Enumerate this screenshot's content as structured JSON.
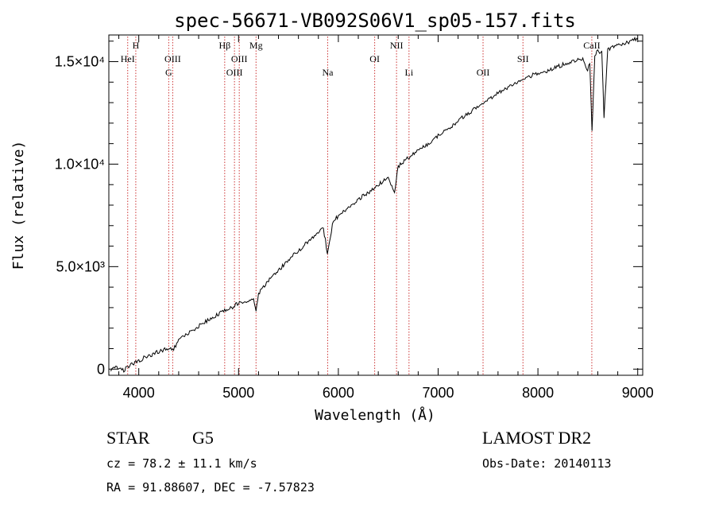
{
  "chart_data": {
    "type": "line",
    "title": "spec-56671-VB092S06V1_sp05-157.fits",
    "xlabel": "Wavelength (Å)",
    "ylabel": "Flux (relative)",
    "xlim": [
      3700,
      9050
    ],
    "ylim": [
      -300,
      16300
    ],
    "x_ticks": [
      4000,
      5000,
      6000,
      7000,
      8000,
      9000
    ],
    "x_tick_labels": [
      "4000",
      "5000",
      "6000",
      "7000",
      "8000",
      "9000"
    ],
    "y_ticks": [
      0,
      5000,
      10000,
      15000
    ],
    "y_tick_labels": [
      "0",
      "5.0×10³",
      "1.0×10⁴",
      "1.5×10⁴"
    ],
    "grid": false,
    "series": [
      {
        "color": "#000000",
        "x": [
          3720,
          3760,
          3800,
          3850,
          3900,
          3950,
          4000,
          4050,
          4100,
          4150,
          4200,
          4250,
          4300,
          4340,
          4400,
          4450,
          4500,
          4550,
          4600,
          4650,
          4700,
          4750,
          4800,
          4861,
          4900,
          4950,
          5000,
          5050,
          5100,
          5150,
          5175,
          5200,
          5250,
          5300,
          5350,
          5400,
          5450,
          5500,
          5550,
          5600,
          5650,
          5700,
          5750,
          5800,
          5850,
          5890,
          5950,
          6000,
          6050,
          6100,
          6150,
          6200,
          6250,
          6300,
          6350,
          6400,
          6450,
          6500,
          6563,
          6600,
          6650,
          6700,
          6750,
          6800,
          6850,
          6900,
          6950,
          7000,
          7050,
          7100,
          7150,
          7200,
          7250,
          7300,
          7350,
          7400,
          7450,
          7500,
          7550,
          7600,
          7650,
          7700,
          7750,
          7800,
          7850,
          7900,
          7950,
          8000,
          8050,
          8100,
          8150,
          8200,
          8250,
          8300,
          8350,
          8400,
          8450,
          8498,
          8520,
          8542,
          8570,
          8600,
          8640,
          8662,
          8700,
          8750,
          8800,
          8850,
          8900,
          8950,
          9000
        ],
        "y": [
          -100,
          50,
          100,
          -50,
          150,
          250,
          400,
          550,
          650,
          750,
          850,
          950,
          1000,
          900,
          1400,
          1600,
          1750,
          1900,
          2100,
          2250,
          2400,
          2550,
          2700,
          2850,
          2950,
          3050,
          3250,
          3300,
          3350,
          3450,
          2800,
          3700,
          4000,
          4350,
          4600,
          4850,
          5050,
          5300,
          5550,
          5750,
          6000,
          6250,
          6450,
          6650,
          6850,
          5700,
          7250,
          7450,
          7650,
          7850,
          8050,
          8250,
          8450,
          8600,
          8800,
          9000,
          9150,
          9350,
          8600,
          9900,
          10100,
          10300,
          10500,
          10700,
          10850,
          11000,
          11200,
          11400,
          11600,
          11750,
          11900,
          12100,
          12300,
          12450,
          12650,
          12800,
          12950,
          13100,
          13300,
          13450,
          13600,
          13750,
          13900,
          14050,
          14150,
          14250,
          14350,
          14400,
          14450,
          14550,
          14650,
          14750,
          14850,
          14950,
          15050,
          15100,
          15150,
          14500,
          15000,
          11600,
          15300,
          15500,
          15450,
          12300,
          15550,
          15700,
          15800,
          15900,
          15950,
          16050,
          16100
        ]
      }
    ],
    "line_marks": [
      {
        "wavelength": 3889,
        "label": "HeI",
        "row": 2
      },
      {
        "wavelength": 3970,
        "label": "H",
        "row": 1
      },
      {
        "wavelength": 4300,
        "label": "G",
        "row": 3
      },
      {
        "wavelength": 4340,
        "label": "OIII",
        "row": 2
      },
      {
        "wavelength": 4861,
        "label": "Hβ",
        "row": 1
      },
      {
        "wavelength": 4959,
        "label": "OIII",
        "row": 3
      },
      {
        "wavelength": 5007,
        "label": "OIII",
        "row": 2
      },
      {
        "wavelength": 5175,
        "label": "Mg",
        "row": 1
      },
      {
        "wavelength": 5893,
        "label": "Na",
        "row": 3
      },
      {
        "wavelength": 6364,
        "label": "OI",
        "row": 2
      },
      {
        "wavelength": 6583,
        "label": "NII",
        "row": 1
      },
      {
        "wavelength": 6708,
        "label": "Li",
        "row": 3
      },
      {
        "wavelength": 7450,
        "label": "OII",
        "row": 3
      },
      {
        "wavelength": 7850,
        "label": "SII",
        "row": 2
      },
      {
        "wavelength": 8540,
        "label": "CaII",
        "row": 1
      }
    ]
  },
  "footer": {
    "object_class": "STAR",
    "subclass": "G5",
    "survey": "LAMOST DR2",
    "cz": "cz = 78.2 ± 11.1 km/s",
    "obs_date": "Obs-Date: 20140113",
    "coords": "RA =  91.88607, DEC =  -7.57823"
  },
  "colors": {
    "spectrum": "#000000",
    "line_marker": "#cc3333",
    "axis": "#000000"
  }
}
